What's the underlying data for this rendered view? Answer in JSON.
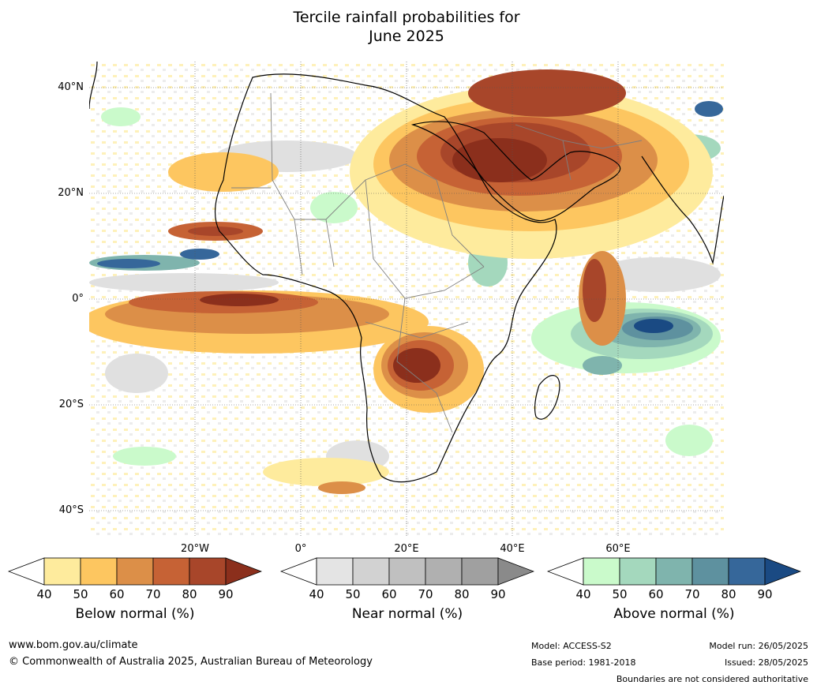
{
  "title_line1": "Tercile rainfall probabilities for",
  "title_line2": "June 2025",
  "lat_labels": [
    "40°N",
    "20°N",
    "0°",
    "20°S",
    "40°S"
  ],
  "lon_labels": [
    "20°W",
    "0°",
    "20°E",
    "40°E",
    "60°E"
  ],
  "colorbars": [
    {
      "label": "Below normal (%)",
      "ticks": [
        "40",
        "50",
        "60",
        "70",
        "80",
        "90"
      ],
      "colors": [
        "#ffffff",
        "#feeb9d",
        "#fdc660",
        "#dc8f48",
        "#c66235",
        "#a8462a",
        "#8b2f1c"
      ]
    },
    {
      "label": "Near normal (%)",
      "ticks": [
        "40",
        "50",
        "60",
        "70",
        "80",
        "90"
      ],
      "colors": [
        "#ffffff",
        "#e4e4e4",
        "#d2d2d2",
        "#c0c0c0",
        "#b0b0b0",
        "#a0a0a0",
        "#8a8a8a"
      ]
    },
    {
      "label": "Above normal (%)",
      "ticks": [
        "40",
        "50",
        "60",
        "70",
        "80",
        "90"
      ],
      "colors": [
        "#ffffff",
        "#cafacb",
        "#a4d8bd",
        "#7fb4ad",
        "#5e919f",
        "#36679a",
        "#1a4a83"
      ]
    }
  ],
  "footer": {
    "url": "www.bom.gov.au/climate",
    "copyright": "© Commonwealth of Australia 2025, Australian Bureau of Meteorology",
    "model": "Model: ACCESS-S2",
    "base_period": "Base period: 1981-2018",
    "model_run": "Model run: 26/05/2025",
    "issued": "Issued: 28/05/2025",
    "disclaimer": "Boundaries are not considered authoritative"
  }
}
